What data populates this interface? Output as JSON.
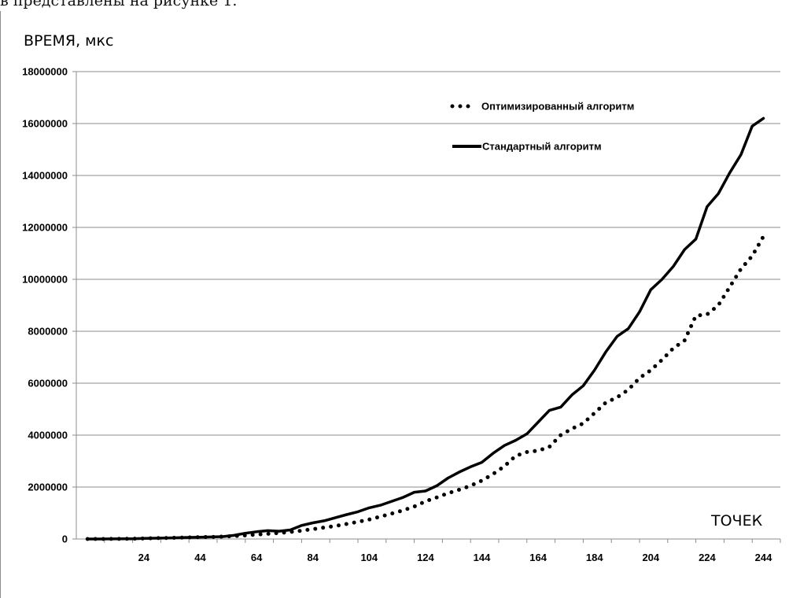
{
  "document": {
    "caption_fragment": "в представлены на рисунке 1."
  },
  "chart_data": {
    "type": "line",
    "ylabel": "ВРЕМЯ, мкс",
    "xlabel": "ТОЧЕК",
    "ylim": [
      0,
      18000000
    ],
    "xlim": [
      0,
      250
    ],
    "y_ticks": [
      "0",
      "2000000",
      "4000000",
      "6000000",
      "8000000",
      "10000000",
      "12000000",
      "14000000",
      "16000000",
      "18000000"
    ],
    "x_ticks": [
      "24",
      "44",
      "64",
      "84",
      "104",
      "124",
      "144",
      "164",
      "184",
      "204",
      "224",
      "244"
    ],
    "grid": "horizontal",
    "legend_position": "top-right",
    "series": [
      {
        "name": "Оптимизированный алгоритм",
        "style": "dotted",
        "color": "#000000",
        "x": [
          4,
          8,
          12,
          16,
          20,
          24,
          28,
          32,
          36,
          40,
          44,
          48,
          52,
          56,
          60,
          64,
          68,
          72,
          76,
          80,
          84,
          88,
          92,
          96,
          100,
          104,
          108,
          112,
          116,
          120,
          124,
          128,
          132,
          136,
          140,
          144,
          148,
          152,
          156,
          160,
          164,
          168,
          172,
          176,
          180,
          184,
          188,
          192,
          196,
          200,
          204,
          208,
          212,
          216,
          220,
          224,
          228,
          232,
          236,
          240,
          244
        ],
        "values": [
          0,
          0,
          2000,
          5000,
          10000,
          20000,
          30000,
          40000,
          50000,
          60000,
          70000,
          80000,
          90000,
          110000,
          140000,
          170000,
          200000,
          230000,
          270000,
          320000,
          380000,
          440000,
          500000,
          580000,
          660000,
          750000,
          860000,
          980000,
          1100000,
          1250000,
          1450000,
          1600000,
          1760000,
          1900000,
          2050000,
          2250000,
          2500000,
          2800000,
          3200000,
          3350000,
          3400000,
          3550000,
          4000000,
          4250000,
          4450000,
          4850000,
          5250000,
          5450000,
          5750000,
          6200000,
          6500000,
          6900000,
          7350000,
          7650000,
          8600000,
          8650000,
          9000000,
          9700000,
          10400000,
          10900000,
          11650000
        ]
      },
      {
        "name": "Стандартный алгоритм",
        "style": "solid",
        "color": "#000000",
        "x": [
          4,
          8,
          12,
          16,
          20,
          24,
          28,
          32,
          36,
          40,
          44,
          48,
          52,
          56,
          60,
          64,
          68,
          72,
          76,
          80,
          84,
          88,
          92,
          96,
          100,
          104,
          108,
          112,
          116,
          120,
          124,
          128,
          132,
          136,
          140,
          144,
          148,
          152,
          156,
          160,
          164,
          168,
          172,
          176,
          180,
          184,
          188,
          192,
          196,
          200,
          204,
          208,
          212,
          216,
          220,
          224,
          228,
          232,
          236,
          240,
          244
        ],
        "values": [
          0,
          0,
          2000,
          5000,
          10000,
          20000,
          30000,
          40000,
          50000,
          60000,
          70000,
          80000,
          90000,
          140000,
          220000,
          280000,
          320000,
          300000,
          350000,
          520000,
          620000,
          700000,
          820000,
          940000,
          1050000,
          1200000,
          1300000,
          1450000,
          1600000,
          1800000,
          1850000,
          2050000,
          2350000,
          2580000,
          2780000,
          2950000,
          3300000,
          3600000,
          3800000,
          4050000,
          4500000,
          4950000,
          5080000,
          5550000,
          5900000,
          6500000,
          7200000,
          7800000,
          8100000,
          8750000,
          9600000,
          10000000,
          10500000,
          11150000,
          11550000,
          12800000,
          13300000,
          14100000,
          14800000,
          15900000,
          16200000
        ]
      }
    ]
  }
}
